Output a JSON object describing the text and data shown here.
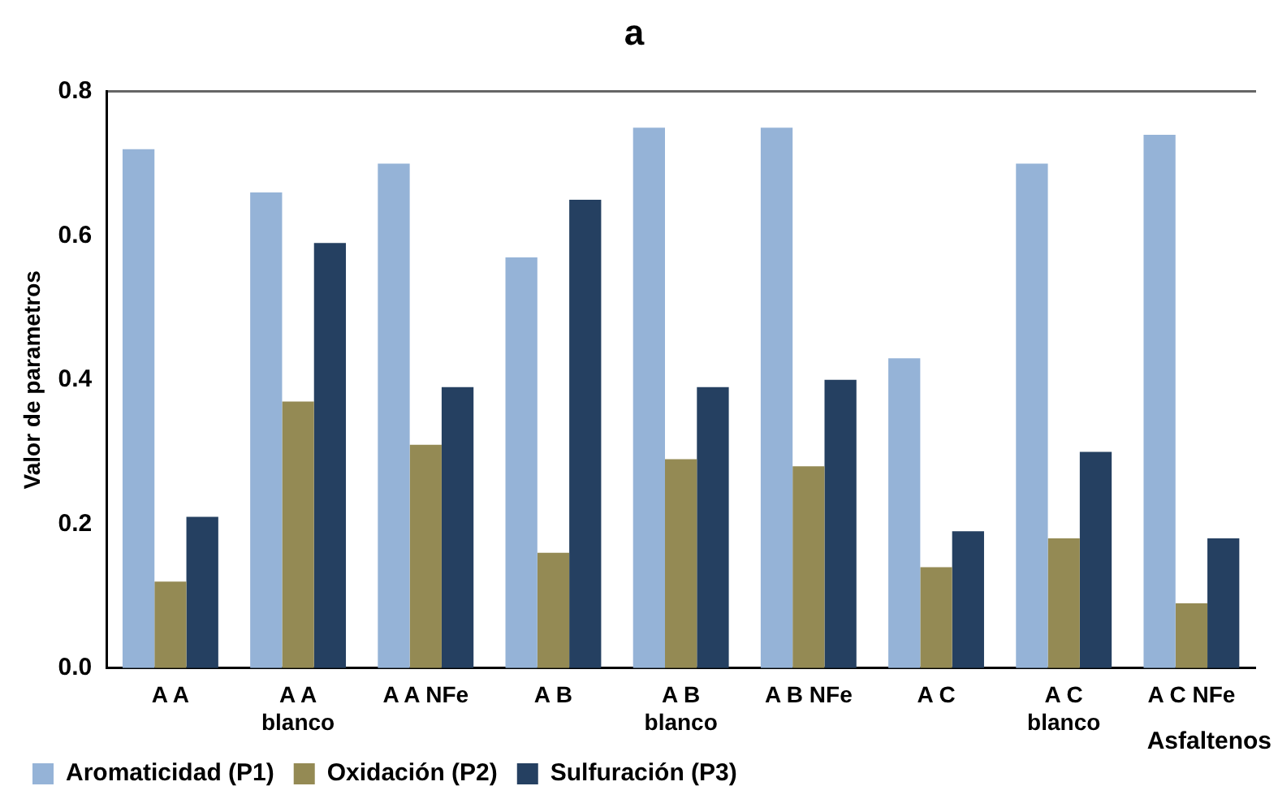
{
  "chart_data": {
    "type": "bar",
    "title": "a",
    "xlabel": "Asfaltenos",
    "ylabel": "Valor de parametros",
    "categories": [
      "A A",
      "A A blanco",
      "A A NFe",
      "A B",
      "A B blanco",
      "A B NFe",
      "A C",
      "A C blanco",
      "A C NFe"
    ],
    "series": [
      {
        "name": "Aromaticidad (P1)",
        "color": "#95b3d7",
        "values": [
          0.72,
          0.66,
          0.7,
          0.57,
          0.75,
          0.75,
          0.43,
          0.7,
          0.74
        ]
      },
      {
        "name": "Oxidación (P2)",
        "color": "#948a54",
        "values": [
          0.12,
          0.37,
          0.31,
          0.16,
          0.29,
          0.28,
          0.14,
          0.18,
          0.09
        ]
      },
      {
        "name": "Sulfuración (P3)",
        "color": "#254061",
        "values": [
          0.21,
          0.59,
          0.39,
          0.65,
          0.39,
          0.4,
          0.19,
          0.3,
          0.18
        ]
      }
    ],
    "ylim": [
      0,
      0.8
    ],
    "yticks": [
      {
        "value": 0,
        "label": "0.0"
      },
      {
        "value": 0.2,
        "label": "0.2"
      },
      {
        "value": 0.4,
        "label": "0.4"
      },
      {
        "value": 0.6,
        "label": "0.6"
      },
      {
        "value": 0.8,
        "label": "0.8"
      }
    ],
    "grid": false,
    "legend": "bottom left"
  }
}
